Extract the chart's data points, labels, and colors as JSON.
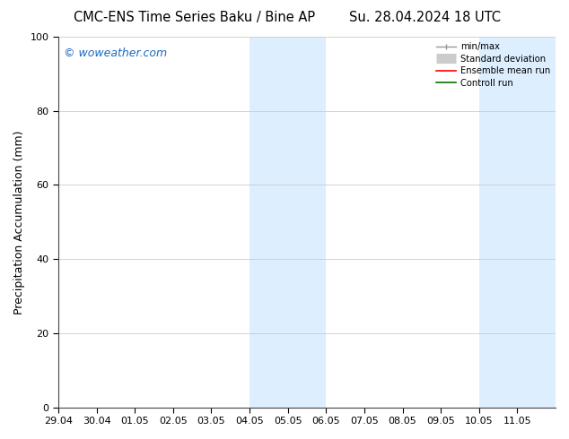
{
  "title_left": "CMC-ENS Time Series Baku / Bine AP",
  "title_right": "Su. 28.04.2024 18 UTC",
  "ylabel": "Precipitation Accumulation (mm)",
  "ylim": [
    0,
    100
  ],
  "yticks": [
    0,
    20,
    40,
    60,
    80,
    100
  ],
  "x_tick_labels": [
    "29.04",
    "30.04",
    "01.05",
    "02.05",
    "03.05",
    "04.05",
    "05.05",
    "06.05",
    "07.05",
    "08.05",
    "09.05",
    "10.05",
    "11.05"
  ],
  "watermark": "© woweather.com",
  "watermark_color": "#1a6abf",
  "bg_color": "#ffffff",
  "plot_bg_color": "#ffffff",
  "shaded_bands": [
    {
      "x_start": 5,
      "x_end": 7,
      "color": "#ddeeff"
    },
    {
      "x_start": 11,
      "x_end": 13,
      "color": "#ddeeff"
    }
  ],
  "legend_entries": [
    {
      "label": "min/max",
      "color": "#aaaaaa",
      "lw": 1.0
    },
    {
      "label": "Standard deviation",
      "color": "#cccccc",
      "lw": 6
    },
    {
      "label": "Ensemble mean run",
      "color": "#ff0000",
      "lw": 1.2
    },
    {
      "label": "Controll run",
      "color": "#007700",
      "lw": 1.2
    }
  ],
  "title_fontsize": 10.5,
  "tick_label_fontsize": 8,
  "ylabel_fontsize": 9,
  "n_xticks": 13,
  "x_min": 0,
  "x_max": 13
}
